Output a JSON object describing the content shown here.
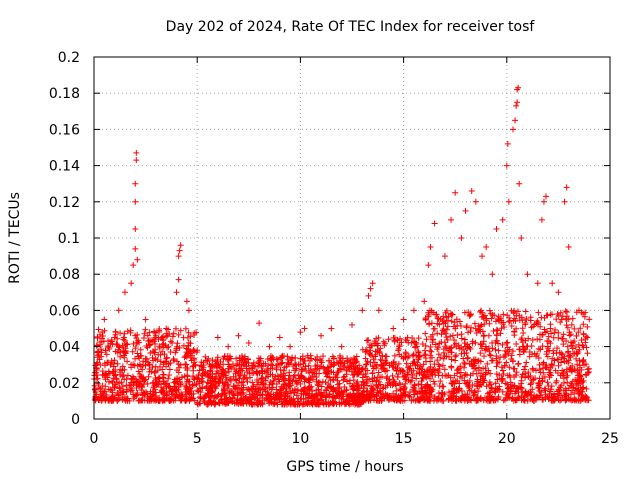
{
  "chart_data": {
    "type": "scatter",
    "title": "Day 202 of 2024, Rate Of TEC Index for receiver tosf",
    "xlabel": "GPS time / hours",
    "ylabel": "ROTI / TECUs",
    "xlim": [
      0,
      25
    ],
    "ylim": [
      0,
      0.2
    ],
    "x_ticks": [
      0,
      5,
      10,
      15,
      20,
      25
    ],
    "x_tick_labels": [
      "0",
      "5",
      "10",
      "15",
      "20",
      "25"
    ],
    "y_ticks": [
      0,
      0.02,
      0.04,
      0.06,
      0.08,
      0.1,
      0.12,
      0.14,
      0.16,
      0.18,
      0.2
    ],
    "y_tick_labels": [
      "0",
      "0.02",
      "0.04",
      "0.06",
      "0.08",
      "0.1",
      "0.12",
      "0.14",
      "0.16",
      "0.18",
      "0.2"
    ],
    "grid": true,
    "marker": "+",
    "series": [
      {
        "name": "ROTI",
        "color": "#ff0000",
        "points": [
          [
            0.1,
            0.022
          ],
          [
            0.2,
            0.035
          ],
          [
            0.3,
            0.041
          ],
          [
            0.4,
            0.048
          ],
          [
            0.5,
            0.055
          ],
          [
            0.8,
            0.03
          ],
          [
            1.0,
            0.045
          ],
          [
            1.2,
            0.06
          ],
          [
            1.5,
            0.07
          ],
          [
            1.8,
            0.075
          ],
          [
            1.9,
            0.085
          ],
          [
            2.0,
            0.094
          ],
          [
            2.0,
            0.105
          ],
          [
            2.0,
            0.12
          ],
          [
            2.0,
            0.13
          ],
          [
            2.05,
            0.143
          ],
          [
            2.05,
            0.147
          ],
          [
            2.1,
            0.088
          ],
          [
            2.5,
            0.055
          ],
          [
            3.0,
            0.045
          ],
          [
            3.5,
            0.05
          ],
          [
            4.0,
            0.07
          ],
          [
            4.1,
            0.077
          ],
          [
            4.1,
            0.09
          ],
          [
            4.15,
            0.093
          ],
          [
            4.2,
            0.096
          ],
          [
            4.5,
            0.065
          ],
          [
            4.6,
            0.06
          ],
          [
            5.0,
            0.038
          ],
          [
            5.5,
            0.032
          ],
          [
            6.0,
            0.045
          ],
          [
            6.5,
            0.04
          ],
          [
            7.0,
            0.046
          ],
          [
            7.5,
            0.042
          ],
          [
            8.0,
            0.053
          ],
          [
            8.5,
            0.04
          ],
          [
            9.0,
            0.045
          ],
          [
            9.5,
            0.04
          ],
          [
            10.0,
            0.048
          ],
          [
            10.2,
            0.05
          ],
          [
            10.5,
            0.035
          ],
          [
            11.0,
            0.046
          ],
          [
            11.5,
            0.05
          ],
          [
            12.0,
            0.04
          ],
          [
            12.5,
            0.052
          ],
          [
            13.0,
            0.06
          ],
          [
            13.3,
            0.068
          ],
          [
            13.4,
            0.072
          ],
          [
            13.5,
            0.075
          ],
          [
            13.8,
            0.06
          ],
          [
            14.5,
            0.05
          ],
          [
            15.0,
            0.055
          ],
          [
            15.5,
            0.06
          ],
          [
            16.0,
            0.065
          ],
          [
            16.2,
            0.085
          ],
          [
            16.3,
            0.095
          ],
          [
            16.5,
            0.108
          ],
          [
            17.0,
            0.09
          ],
          [
            17.3,
            0.11
          ],
          [
            17.5,
            0.125
          ],
          [
            17.8,
            0.1
          ],
          [
            18.0,
            0.115
          ],
          [
            18.3,
            0.126
          ],
          [
            18.5,
            0.12
          ],
          [
            18.8,
            0.09
          ],
          [
            19.0,
            0.095
          ],
          [
            19.3,
            0.08
          ],
          [
            19.5,
            0.105
          ],
          [
            19.8,
            0.11
          ],
          [
            20.0,
            0.14
          ],
          [
            20.05,
            0.152
          ],
          [
            20.1,
            0.12
          ],
          [
            20.3,
            0.16
          ],
          [
            20.4,
            0.165
          ],
          [
            20.45,
            0.173
          ],
          [
            20.5,
            0.175
          ],
          [
            20.5,
            0.182
          ],
          [
            20.55,
            0.183
          ],
          [
            20.6,
            0.13
          ],
          [
            20.7,
            0.1
          ],
          [
            21.0,
            0.08
          ],
          [
            21.5,
            0.075
          ],
          [
            21.7,
            0.11
          ],
          [
            21.8,
            0.12
          ],
          [
            21.9,
            0.123
          ],
          [
            22.2,
            0.075
          ],
          [
            22.5,
            0.07
          ],
          [
            22.8,
            0.12
          ],
          [
            22.9,
            0.128
          ],
          [
            23.0,
            0.095
          ],
          [
            23.5,
            0.06
          ],
          [
            23.7,
            0.058
          ],
          [
            23.9,
            0.045
          ]
        ]
      }
    ],
    "dense_band": {
      "name": "background ROTI spread",
      "segments": [
        {
          "x_range": [
            0,
            5
          ],
          "y_range": [
            0.01,
            0.05
          ]
        },
        {
          "x_range": [
            5,
            13
          ],
          "y_range": [
            0.008,
            0.035
          ]
        },
        {
          "x_range": [
            13,
            16
          ],
          "y_range": [
            0.01,
            0.045
          ]
        },
        {
          "x_range": [
            16,
            24
          ],
          "y_range": [
            0.01,
            0.06
          ]
        }
      ]
    }
  }
}
